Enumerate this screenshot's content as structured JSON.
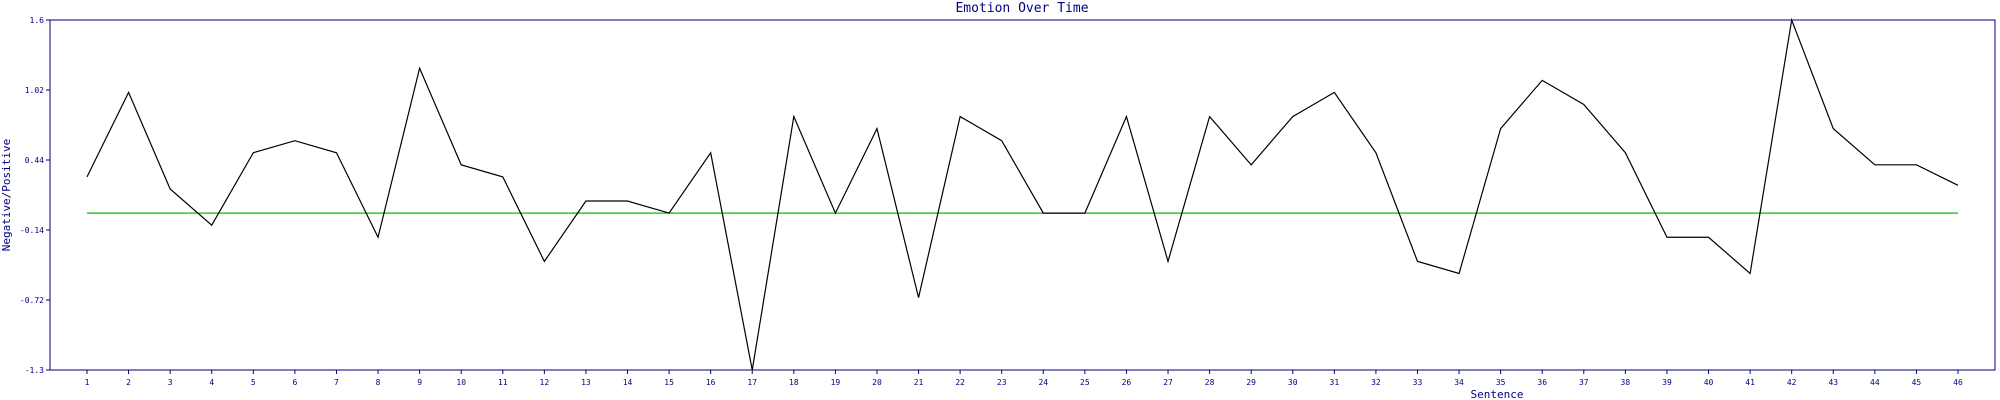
{
  "chart_data": {
    "type": "line",
    "title": "Emotion Over Time",
    "xlabel": "Sentence",
    "ylabel": "Negative/Positive",
    "ylim": [
      -1.3,
      1.6
    ],
    "y_ticks": [
      "1.6",
      "1.02",
      "0.44",
      "-0.14",
      "-0.72",
      "-1.3"
    ],
    "x": [
      1,
      2,
      3,
      4,
      5,
      6,
      7,
      8,
      9,
      10,
      11,
      12,
      13,
      14,
      15,
      16,
      17,
      18,
      19,
      20,
      21,
      22,
      23,
      24,
      25,
      26,
      27,
      28,
      29,
      30,
      31,
      32,
      33,
      34,
      35,
      36,
      37,
      38,
      39,
      40,
      41,
      42,
      43,
      44,
      45,
      46
    ],
    "series": [
      {
        "color": "#000000",
        "values": [
          0.3,
          1.0,
          0.2,
          -0.1,
          0.5,
          0.6,
          0.5,
          -0.2,
          1.2,
          0.4,
          0.3,
          -0.4,
          0.1,
          0.1,
          0.0,
          0.5,
          -1.3,
          0.8,
          0.0,
          0.7,
          -0.7,
          0.8,
          0.6,
          0.0,
          0.0,
          0.8,
          -0.4,
          0.8,
          0.4,
          0.8,
          1.0,
          0.5,
          -0.4,
          -0.5,
          0.7,
          1.1,
          0.9,
          0.5,
          -0.2,
          -0.2,
          -0.5,
          1.6,
          0.7,
          0.4,
          0.4,
          0.23
        ]
      },
      {
        "color": "#00c000",
        "values": [
          0.0,
          0.0,
          0.0,
          0.0,
          0.0,
          0.0,
          0.0,
          0.0,
          0.0,
          0.0,
          0.0,
          0.0,
          0.0,
          0.0,
          0.0,
          0.0,
          0.0,
          0.0,
          0.0,
          0.0,
          0.0,
          0.0,
          0.0,
          0.0,
          0.0,
          0.0,
          0.0,
          0.0,
          0.0,
          0.0,
          0.0,
          0.0,
          0.0,
          0.0,
          0.0,
          0.0,
          0.0,
          0.0,
          0.0,
          0.0,
          0.0,
          0.0,
          0.0,
          0.0,
          0.0,
          0.0
        ]
      }
    ],
    "grid": false,
    "frame_color": "#000080"
  }
}
